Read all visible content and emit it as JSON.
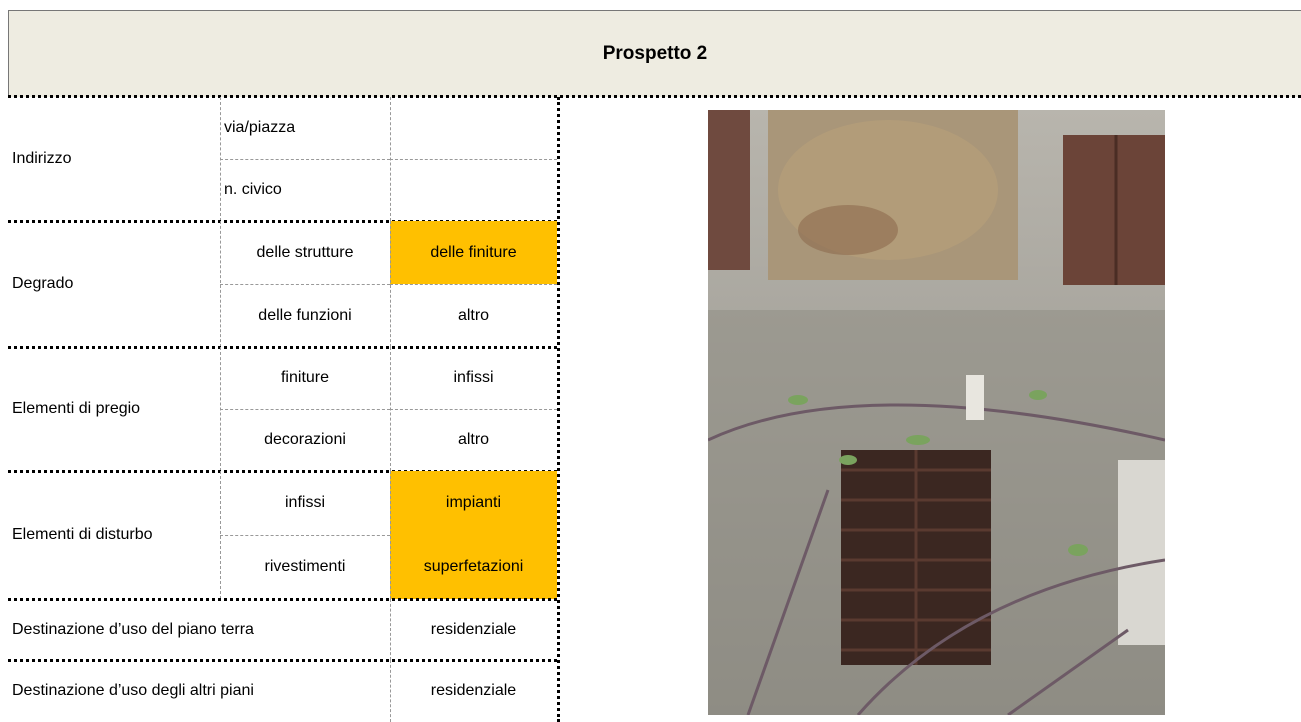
{
  "header": {
    "title": "Prospetto 2"
  },
  "form": {
    "highlight_color": "#ffc000",
    "groups": [
      {
        "label": "Indirizzo",
        "rows": [
          {
            "cells": [
              "via/piazza"
            ],
            "highlighted": [
              false
            ]
          },
          {
            "cells": [
              "n. civico"
            ],
            "highlighted": [
              false
            ]
          }
        ]
      },
      {
        "label": "Degrado",
        "rows": [
          {
            "cells": [
              "delle strutture",
              "delle finiture"
            ],
            "highlighted": [
              false,
              true
            ]
          },
          {
            "cells": [
              "delle funzioni",
              "altro"
            ],
            "highlighted": [
              false,
              false
            ]
          }
        ]
      },
      {
        "label": "Elementi di pregio",
        "rows": [
          {
            "cells": [
              "finiture",
              "infissi"
            ],
            "highlighted": [
              false,
              false
            ]
          },
          {
            "cells": [
              "decorazioni",
              "altro"
            ],
            "highlighted": [
              false,
              false
            ]
          }
        ]
      },
      {
        "label": "Elementi di disturbo",
        "rows": [
          {
            "cells": [
              "infissi",
              "impianti"
            ],
            "highlighted": [
              false,
              true
            ]
          },
          {
            "cells": [
              "rivestimenti",
              "superfetazioni"
            ],
            "highlighted": [
              false,
              true
            ]
          }
        ]
      }
    ],
    "single_rows": [
      {
        "label": "Destinazione d’uso del piano terra",
        "value": "residenziale"
      },
      {
        "label": "Destinazione d’uso degli altri piani",
        "value": "residenziale"
      }
    ]
  }
}
